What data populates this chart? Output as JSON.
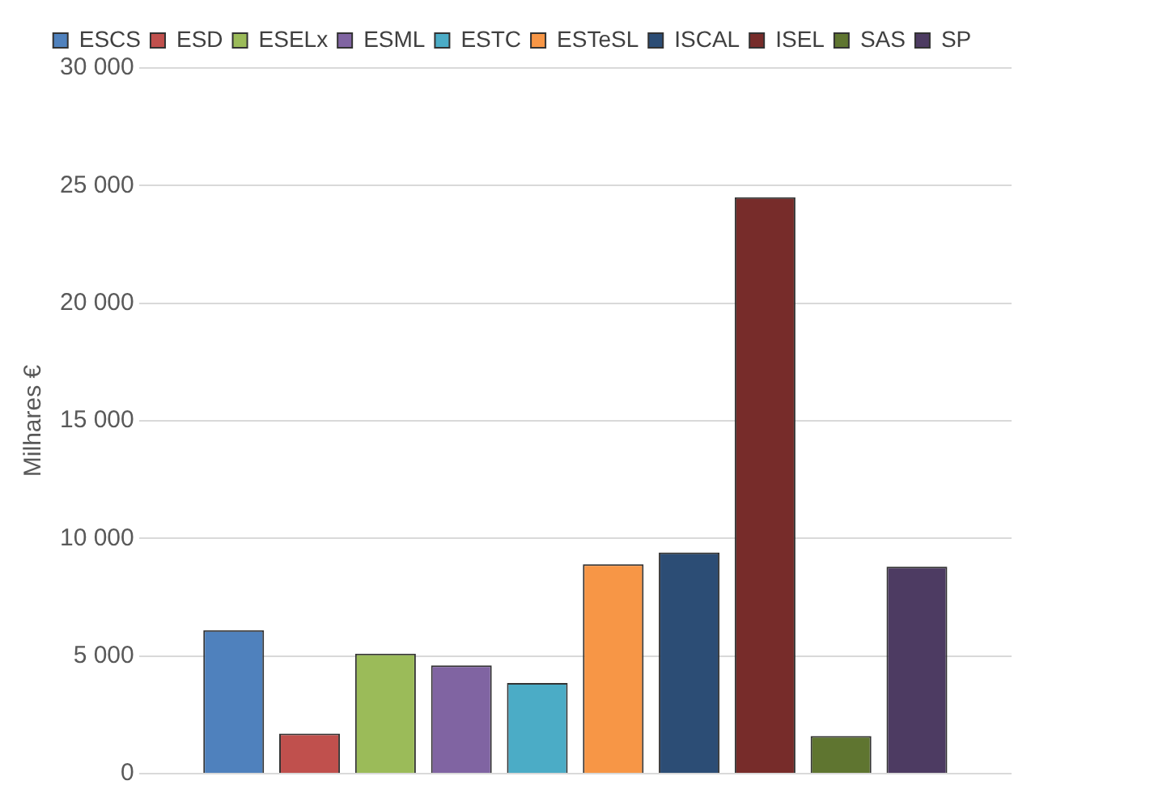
{
  "chart_data": {
    "type": "bar",
    "ylabel": "Milhares €",
    "categories": [
      null
    ],
    "series": [
      {
        "name": "ESCS",
        "color": "#4f81bd",
        "values": [
          6100
        ]
      },
      {
        "name": "ESD",
        "color": "#c0504d",
        "values": [
          1700
        ]
      },
      {
        "name": "ESELx",
        "color": "#9bbb59",
        "values": [
          5100
        ]
      },
      {
        "name": "ESML",
        "color": "#8064a2",
        "values": [
          4600
        ]
      },
      {
        "name": "ESTC",
        "color": "#4bacc6",
        "values": [
          3850
        ]
      },
      {
        "name": "ESTeSL",
        "color": "#f79646",
        "values": [
          8900
        ]
      },
      {
        "name": "ISCAL",
        "color": "#2c4d75",
        "values": [
          9400
        ]
      },
      {
        "name": "ISEL",
        "color": "#772c2a",
        "values": [
          24500
        ]
      },
      {
        "name": "SAS",
        "color": "#5f7530",
        "values": [
          1600
        ]
      },
      {
        "name": "SP",
        "color": "#4d3b62",
        "values": [
          8800
        ]
      }
    ],
    "ylim": [
      0,
      30000
    ],
    "yticks": [
      0,
      {
        "value": 5000,
        "label": "5 000"
      },
      {
        "value": 10000,
        "label": "10 000"
      },
      {
        "value": 15000,
        "label": "15 000"
      },
      {
        "value": 20000,
        "label": "20 000"
      },
      {
        "value": 25000,
        "label": "25 000"
      },
      {
        "value": 30000,
        "label": "30 000"
      }
    ],
    "grid": "y",
    "legend": "top"
  }
}
